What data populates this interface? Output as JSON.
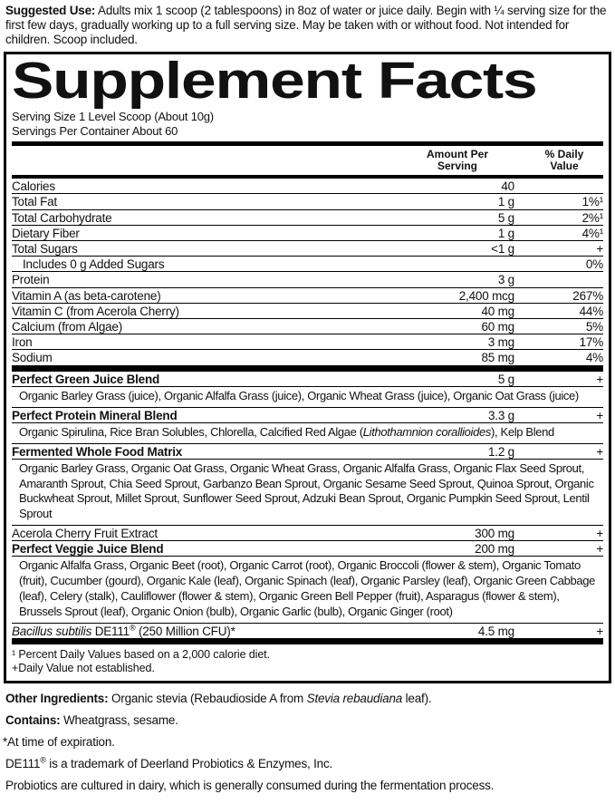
{
  "suggested_use": {
    "parts": [
      {
        "t": "Suggested Use:",
        "b": true
      },
      {
        "t": " Adults mix 1 scoop (2 tablespoons) in 8oz of water or juice daily. Begin with ¼ serving size for the first few days, gradually working up to a full serving size. May be taken with or without food. Not intended for children. Scoop included."
      }
    ]
  },
  "panel": {
    "title": "Supplement Facts",
    "serving_size": "Serving Size 1 Level Scoop (About 10g)",
    "servings_per_container": "Servings Per Container About 60",
    "header": {
      "amount": [
        "Amount Per",
        "Serving"
      ],
      "dv": [
        "% Daily",
        "Value"
      ]
    },
    "rows": [
      {
        "name": "Calories",
        "amount": "40",
        "dv": ""
      },
      {
        "name": "Total Fat",
        "amount": "1 g",
        "dv": "1%¹"
      },
      {
        "name": "Total Carbohydrate",
        "amount": "5 g",
        "dv": "2%¹"
      },
      {
        "name": "Dietary Fiber",
        "amount": "1 g",
        "dv": "4%¹"
      },
      {
        "name": "Total Sugars",
        "amount": "<1 g",
        "dv": "+"
      },
      {
        "name": "Includes 0 g Added Sugars",
        "indent": true,
        "amount": "",
        "dv": "0%"
      },
      {
        "name": "Protein",
        "amount": "3 g",
        "dv": ""
      },
      {
        "name": "Vitamin A (as beta-carotene)",
        "amount": "2,400 mcg",
        "dv": "267%"
      },
      {
        "name": "Vitamin C (from Acerola Cherry)",
        "amount": "40 mg",
        "dv": "44%"
      },
      {
        "name": "Calcium (from Algae)",
        "amount": "60 mg",
        "dv": "5%"
      },
      {
        "name": "Iron",
        "amount": "3 mg",
        "dv": "17%"
      },
      {
        "name": "Sodium",
        "amount": "85 mg",
        "dv": "4%"
      }
    ],
    "blends": [
      {
        "name": "Perfect Green Juice Blend",
        "bold": true,
        "amount": "5 g",
        "dv": "+",
        "ingredients_parts": [
          {
            "t": "Organic Barley Grass (juice), Organic Alfalfa Grass (juice), Organic Wheat Grass (juice), Organic Oat Grass (juice)"
          }
        ]
      },
      {
        "name": "Perfect Protein Mineral Blend",
        "bold": true,
        "amount": "3.3 g",
        "dv": "+",
        "ingredients_parts": [
          {
            "t": "Organic Spirulina, Rice Bran Solubles, Chlorella, Calcified Red Algae ("
          },
          {
            "t": "Lithothamnion corallioides",
            "i": true
          },
          {
            "t": "), Kelp Blend"
          }
        ]
      },
      {
        "name": "Fermented Whole Food Matrix",
        "bold": true,
        "amount": "1.2 g",
        "dv": "+",
        "ingredients_parts": [
          {
            "t": "Organic Barley Grass, Organic Oat Grass, Organic Wheat Grass, Organic Alfalfa Grass, Organic Flax Seed Sprout, Amaranth Sprout, Chia Seed Sprout, Garbanzo Bean Sprout, Organic Sesame Seed Sprout, Quinoa Sprout, Organic Buckwheat Sprout, Millet Sprout, Sunflower Seed Sprout, Adzuki Bean Sprout, Organic Pumpkin Seed Sprout, Lentil Sprout"
          }
        ]
      },
      {
        "name": "Acerola Cherry Fruit Extract",
        "bold": false,
        "amount": "300 mg",
        "dv": "+"
      },
      {
        "name": "Perfect Veggie Juice Blend",
        "bold": true,
        "amount": "200 mg",
        "dv": "+",
        "ingredients_parts": [
          {
            "t": "Organic Alfalfa Grass, Organic Beet (root), Organic Carrot (root), Organic Broccoli (flower & stem), Organic Tomato (fruit), Cucumber (gourd), Organic Kale (leaf), Organic Spinach (leaf), Organic Parsley (leaf), Organic Green Cabbage (leaf), Celery (stalk), Cauliflower (flower & stem), Organic Green Bell Pepper (fruit), Asparagus (flower & stem), Brussels Sprout (leaf), Organic Onion (bulb), Organic Garlic (bulb), Organic Ginger (root)"
          }
        ]
      },
      {
        "name_parts": [
          {
            "t": "Bacillus subtilis",
            "i": true
          },
          {
            "t": " DE111"
          },
          {
            "t": "®",
            "sup": true
          },
          {
            "t": " (250 Million CFU)*"
          }
        ],
        "bold": false,
        "amount": "4.5 mg",
        "dv": "+"
      }
    ],
    "footnotes": [
      "¹ Percent Daily Values based on a 2,000 calorie diet.",
      "+Daily Value not established."
    ]
  },
  "bottom": {
    "other_ingredients": {
      "parts": [
        {
          "t": "Other Ingredients:",
          "b": true
        },
        {
          "t": " Organic stevia (Rebaudioside A from "
        },
        {
          "t": "Stevia rebaudiana",
          "i": true
        },
        {
          "t": " leaf)."
        }
      ]
    },
    "contains": {
      "parts": [
        {
          "t": "Contains:",
          "b": true
        },
        {
          "t": " Wheatgrass, sesame."
        }
      ]
    },
    "notes": [
      {
        "star": true,
        "parts": [
          {
            "t": "*At time of expiration."
          }
        ]
      },
      {
        "parts": [
          {
            "t": "DE111"
          },
          {
            "t": "®",
            "sup": true
          },
          {
            "t": " is a trademark of Deerland Probiotics & Enzymes, Inc."
          }
        ]
      },
      {
        "parts": [
          {
            "t": "Probiotics are cultured in dairy, which is generally consumed during the fermentation process."
          }
        ]
      }
    ]
  },
  "colors": {
    "text": "#111111",
    "border": "#000000",
    "background": "#ffffff"
  }
}
